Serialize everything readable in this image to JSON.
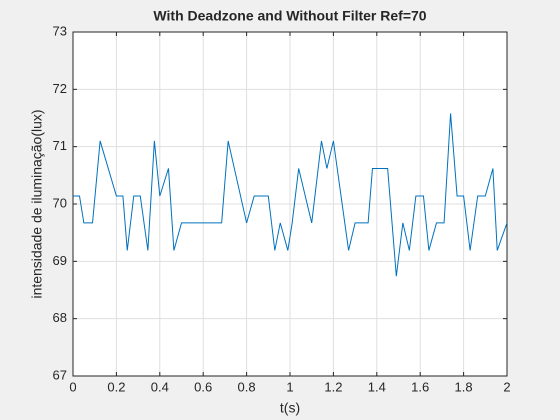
{
  "chart_data": {
    "type": "line",
    "title": "With Deadzone and Without Filter Ref=70",
    "x_label": "t(s)",
    "y_label": "intensidade de iluminação(lux)",
    "series": [
      {
        "name": "intensidade",
        "color": "#0072bd",
        "x": [
          0,
          0.03,
          0.05,
          0.09,
          0.125,
          0.2,
          0.23,
          0.25,
          0.28,
          0.31,
          0.345,
          0.375,
          0.4,
          0.44,
          0.465,
          0.5,
          0.685,
          0.715,
          0.8,
          0.835,
          0.9,
          0.93,
          0.955,
          0.99,
          1.01,
          1.04,
          1.1,
          1.145,
          1.17,
          1.2,
          1.27,
          1.3,
          1.36,
          1.38,
          1.45,
          1.49,
          1.52,
          1.55,
          1.58,
          1.615,
          1.64,
          1.675,
          1.71,
          1.74,
          1.77,
          1.8,
          1.83,
          1.865,
          1.9,
          1.935,
          1.955,
          2
        ],
        "values": [
          70.14,
          70.14,
          69.67,
          69.67,
          71.1,
          70.14,
          70.14,
          69.19,
          70.14,
          70.14,
          69.19,
          71.1,
          70.14,
          70.62,
          69.19,
          69.67,
          69.67,
          71.1,
          69.67,
          70.14,
          70.14,
          69.19,
          69.67,
          69.19,
          69.67,
          70.62,
          69.67,
          71.1,
          70.62,
          71.1,
          69.19,
          69.67,
          69.67,
          70.62,
          70.62,
          68.74,
          69.67,
          69.19,
          70.14,
          70.14,
          69.19,
          69.67,
          69.67,
          71.58,
          70.14,
          70.14,
          69.19,
          70.14,
          70.14,
          70.62,
          69.19,
          69.67
        ]
      }
    ],
    "xlim": [
      0,
      2
    ],
    "xticks": [
      0,
      0.2,
      0.4,
      0.6,
      0.8,
      1,
      1.2,
      1.4,
      1.6,
      1.8,
      2
    ],
    "ylim": [
      67,
      73
    ],
    "yticks": [
      67,
      68,
      69,
      70,
      71,
      72,
      73
    ],
    "grid": true
  }
}
